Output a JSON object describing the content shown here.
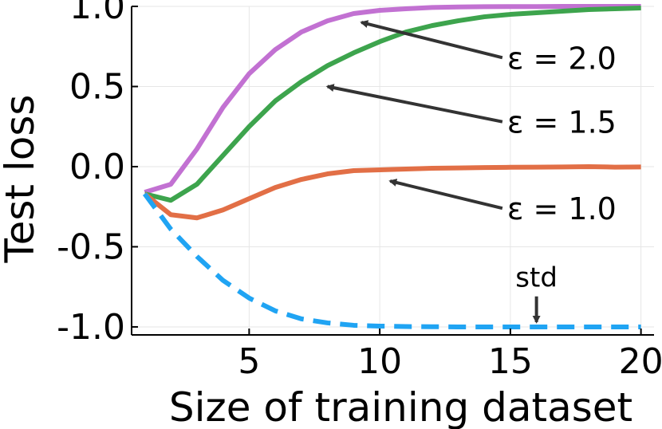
{
  "chart_data": {
    "type": "line",
    "title": "",
    "xlabel": "Size of training dataset",
    "ylabel": "Test loss",
    "xlim": [
      0.5,
      20.5
    ],
    "ylim": [
      -1.05,
      1.0
    ],
    "xticks": [
      5,
      10,
      15,
      20
    ],
    "xtick_labels": [
      "5",
      "10",
      "15",
      "20"
    ],
    "yticks": [
      1.0,
      0.5,
      0.0,
      -0.5,
      -1.0
    ],
    "ytick_labels": [
      "1.0",
      "0.5",
      "0.0",
      "-0.5",
      "-1.0"
    ],
    "grid": true,
    "legend": "none",
    "x": [
      1,
      2,
      3,
      4,
      5,
      6,
      7,
      8,
      9,
      10,
      11,
      12,
      13,
      14,
      15,
      16,
      17,
      18,
      19,
      20
    ],
    "series": [
      {
        "color": "#c271d2",
        "dash": "solid",
        "values": [
          -0.16,
          -0.11,
          0.11,
          0.37,
          0.58,
          0.73,
          0.84,
          0.91,
          0.955,
          0.975,
          0.985,
          0.993,
          0.996,
          0.998,
          0.999,
          0.999,
          1.0,
          1.0,
          1.0,
          1.0
        ]
      },
      {
        "color": "#3da44d",
        "dash": "solid",
        "values": [
          -0.17,
          -0.21,
          -0.11,
          0.07,
          0.25,
          0.41,
          0.53,
          0.63,
          0.71,
          0.78,
          0.84,
          0.88,
          0.91,
          0.935,
          0.95,
          0.96,
          0.97,
          0.98,
          0.985,
          0.99
        ]
      },
      {
        "color": "#e26f46",
        "dash": "solid",
        "values": [
          -0.17,
          -0.3,
          -0.32,
          -0.27,
          -0.2,
          -0.13,
          -0.08,
          -0.045,
          -0.025,
          -0.02,
          -0.015,
          -0.01,
          -0.008,
          -0.006,
          -0.004,
          -0.003,
          -0.002,
          0.0,
          -0.003,
          -0.002
        ]
      },
      {
        "color": "#20a4f3",
        "dash": "dashed",
        "values": [
          -0.17,
          -0.39,
          -0.56,
          -0.71,
          -0.82,
          -0.9,
          -0.95,
          -0.975,
          -0.99,
          -0.995,
          -0.998,
          -0.999,
          -1.0,
          -1.0,
          -1.0,
          -1.0,
          -1.0,
          -1.0,
          -1.0,
          -1.0
        ]
      }
    ],
    "annotations": [
      {
        "text": "ε = 2.0",
        "label_x": 15,
        "label_y": 0.67,
        "arrow_to": [
          9.3,
          0.9
        ]
      },
      {
        "text": "ε = 1.5",
        "label_x": 15,
        "label_y": 0.27,
        "arrow_to": [
          8,
          0.5
        ]
      },
      {
        "text": "ε = 1.0",
        "label_x": 15,
        "label_y": -0.27,
        "arrow_to": [
          10.4,
          -0.09
        ]
      },
      {
        "text": "std",
        "label_x": 16,
        "label_y": -0.75,
        "arrow_to": [
          16,
          -0.97
        ]
      }
    ]
  }
}
